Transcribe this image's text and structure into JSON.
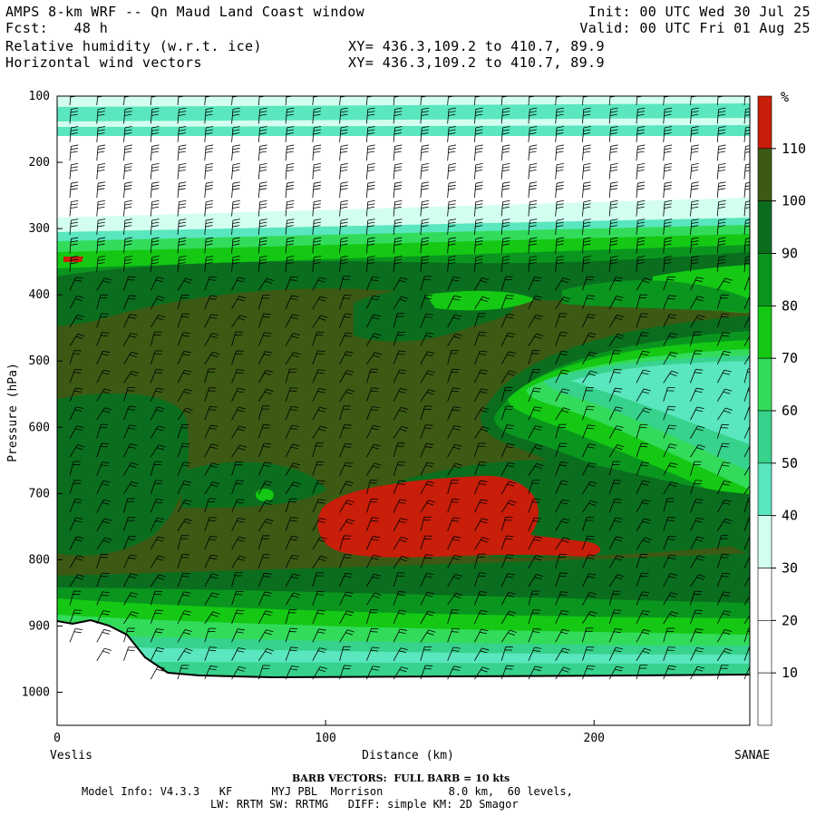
{
  "header": {
    "title": "AMPS 8-km WRF -- Qn Maud Land Coast window",
    "fcst_label": "Fcst:",
    "fcst_value": "48 h",
    "field1": "Relative humidity (w.r.t. ice)",
    "field2": "Horizontal wind vectors",
    "init": "Init: 00 UTC Wed 30 Jul 25",
    "valid": "Valid: 00 UTC Fri 01 Aug 25",
    "xy1": "XY= 436.3,109.2 to 410.7, 89.9",
    "xy2": "XY= 436.3,109.2 to 410.7, 89.9"
  },
  "footer": {
    "barb_note": "BARB VECTORS:  FULL BARB = 10 kts",
    "model_info": "Model Info: V4.3.3   KF      MYJ PBL  Morrison          8.0 km,  60 levels,",
    "physics": "LW: RRTM SW: RRTMG   DIFF: simple KM: 2D Smagor",
    "left_site": "Veslis",
    "right_site": "SANAE"
  },
  "chart_data": {
    "type": "heatmap",
    "title": "Relative humidity (w.r.t. ice)",
    "xlabel": "Distance (km)",
    "ylabel": "Pressure (hPa)",
    "xlim": [
      0,
      258
    ],
    "ylim": [
      1050,
      100
    ],
    "x_ticks": [
      "0",
      "100",
      "200"
    ],
    "y_ticks": [
      "100",
      "200",
      "300",
      "400",
      "500",
      "600",
      "700",
      "800",
      "900",
      "1000"
    ],
    "colorbar": {
      "unit": "%",
      "levels": [
        "10",
        "20",
        "30",
        "40",
        "50",
        "60",
        "70",
        "80",
        "90",
        "100",
        "110"
      ],
      "colors": [
        "#ffffff",
        "#ffffff",
        "#ffffff",
        "#d2fff0",
        "#5ae6be",
        "#37d28c",
        "#32dc5a",
        "#14c814",
        "#0a961e",
        "#0a6e1e",
        "#3c5a14",
        "#c81e0a"
      ]
    },
    "barbs": "FULL BARB = 10 kts",
    "colors": {
      "background_band": "#3c5a14",
      "red": "#c81e0a",
      "dark_green": "#0a6e1e",
      "green": "#14c814",
      "aqua": "#5ae6be"
    }
  }
}
